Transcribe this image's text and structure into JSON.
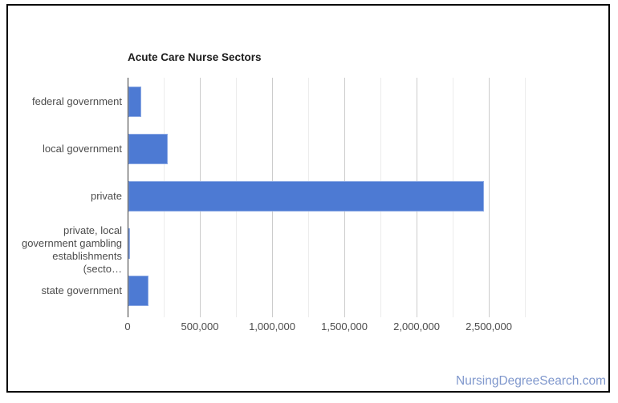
{
  "page": {
    "background": "#ffffff",
    "frame_border_color": "#000000"
  },
  "watermark": {
    "text": "NursingDegreeSearch.com",
    "color": "#8098cd"
  },
  "chart_data": {
    "type": "bar",
    "orientation": "horizontal",
    "title": "Acute Care Nurse Sectors",
    "categories": [
      "federal government",
      "local government",
      "private",
      "private, local government gambling establishments (secto…",
      "state government"
    ],
    "category_display_lines": [
      [
        "federal government"
      ],
      [
        "local government"
      ],
      [
        "private"
      ],
      [
        "private, local",
        "government gambling",
        "establishments (secto…"
      ],
      [
        "state government"
      ]
    ],
    "values": [
      90000,
      270000,
      2460000,
      5000,
      140000
    ],
    "xlabel": "",
    "ylabel": "",
    "xlim": [
      0,
      2894000
    ],
    "xticks": {
      "values": [
        0,
        500000,
        1000000,
        1500000,
        2000000,
        2500000
      ],
      "labels": [
        "0",
        "500,000",
        "1,000,000",
        "1,500,000",
        "2,000,000",
        "2,500,000"
      ]
    },
    "minor_tick_step": 250000,
    "grid": true,
    "legend": "none",
    "bar_color": "#4d7ad3",
    "bar_edge_color": "#8ca9e4",
    "axis_color": "#3a3a3a",
    "major_grid_color": "#cccccc",
    "minor_grid_color": "#ececec"
  }
}
